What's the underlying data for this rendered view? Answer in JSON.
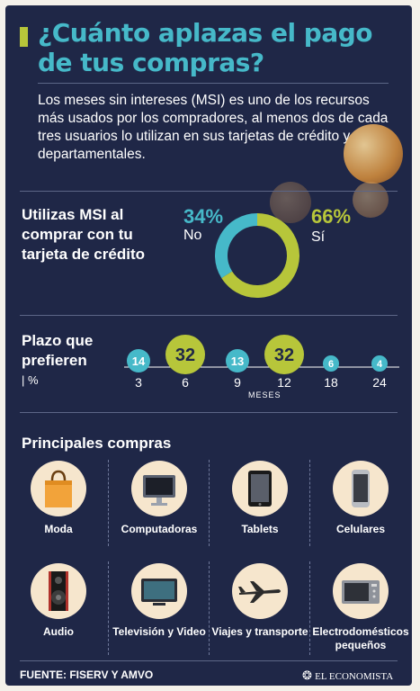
{
  "header": {
    "title": "¿Cuánto aplazas el pago de tus compras?",
    "intro": "Los meses sin intereses (MSI) es uno de los recursos más usados por los compradores, al menos dos de cada tres usuarios lo utilizan en sus tarjetas de crédito y departamentales."
  },
  "question": {
    "text": "Utilizas MSI al comprar con tu tarjeta de crédito",
    "no_pct": "34%",
    "no_label": "No",
    "yes_pct": "66%",
    "yes_label": "Sí"
  },
  "plazo": {
    "title": "Plazo que prefieren",
    "unit": "| %",
    "axis_caption": "MESES"
  },
  "compras": {
    "title": "Principales compras",
    "items": [
      {
        "label": "Moda",
        "icon": "shopping-bag-icon"
      },
      {
        "label": "Computadoras",
        "icon": "desktop-computer-icon"
      },
      {
        "label": "Tablets",
        "icon": "tablet-icon"
      },
      {
        "label": "Celulares",
        "icon": "smartphone-icon"
      },
      {
        "label": "Audio",
        "icon": "speaker-icon"
      },
      {
        "label": "Televisión y Video",
        "icon": "television-icon"
      },
      {
        "label": "Viajes y transporte",
        "icon": "airplane-icon"
      },
      {
        "label": "Electrodomésticos pequeños",
        "icon": "microwave-icon"
      }
    ]
  },
  "footer": {
    "source": "FUENTE: FISERV Y AMVO",
    "brand": "EL ECONOMISTA"
  },
  "colors": {
    "background": "#1f2747",
    "teal": "#46b9c9",
    "olive": "#b7c63a",
    "cream": "#f6e6cd"
  },
  "chart_data": [
    {
      "type": "pie",
      "categories": [
        "No",
        "Sí"
      ],
      "values": [
        34,
        66
      ]
    },
    {
      "type": "scatter",
      "xlabel": "MESES",
      "categories": [
        "3",
        "6",
        "9",
        "12",
        "18",
        "24"
      ],
      "values": [
        14,
        32,
        13,
        32,
        6,
        4
      ]
    }
  ]
}
